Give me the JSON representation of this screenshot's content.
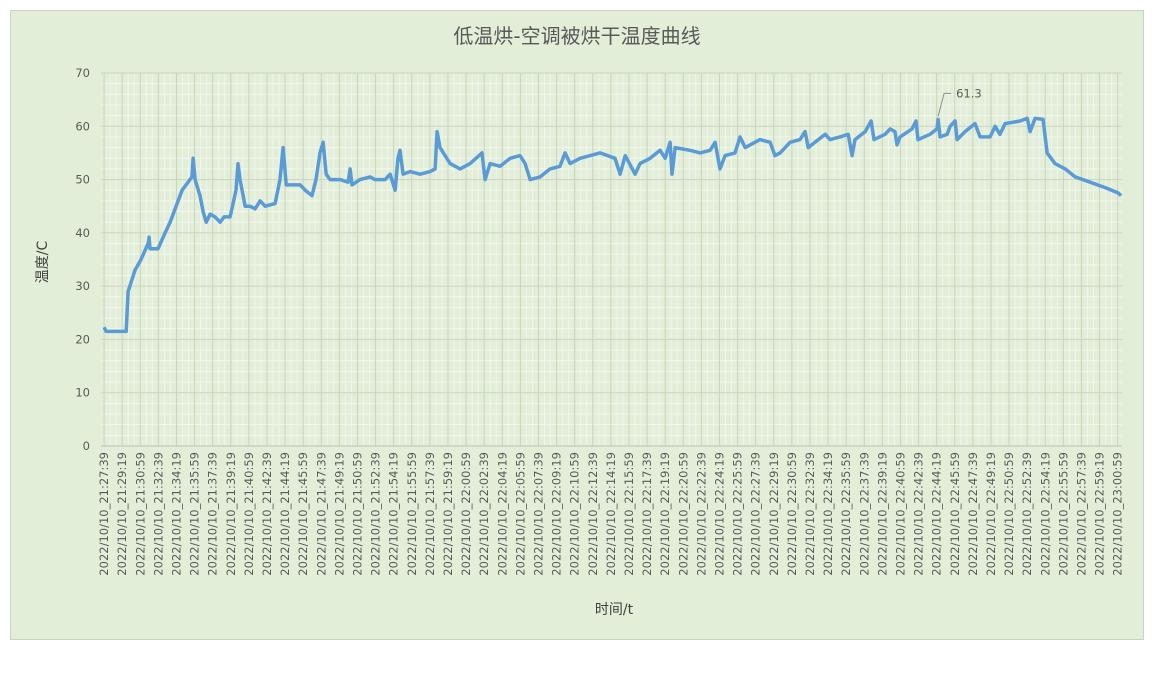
{
  "chart_data": {
    "type": "line",
    "title": "低温烘-空调被烘干温度曲线",
    "xlabel": "时间/t",
    "ylabel": "温度/C",
    "ylim": [
      0,
      70
    ],
    "yticks": [
      0,
      10,
      20,
      30,
      40,
      50,
      60,
      70
    ],
    "xlim": [
      "21:27:22",
      "23:01:23"
    ],
    "grid": true,
    "legend": "none",
    "line_color": "#5b9bd5",
    "background_color": "#e2eed8",
    "xtick_labels": [
      "2022/10/10_21:27:39",
      "2022/10/10_21:29:19",
      "2022/10/10_21:30:59",
      "2022/10/10_21:32:39",
      "2022/10/10_21:34:19",
      "2022/10/10_21:35:59",
      "2022/10/10_21:37:39",
      "2022/10/10_21:39:19",
      "2022/10/10_21:40:59",
      "2022/10/10_21:42:39",
      "2022/10/10_21:44:19",
      "2022/10/10_21:45:59",
      "2022/10/10_21:47:39",
      "2022/10/10_21:49:19",
      "2022/10/10_21:50:59",
      "2022/10/10_21:52:39",
      "2022/10/10_21:54:19",
      "2022/10/10_21:55:59",
      "2022/10/10_21:57:39",
      "2022/10/10_21:59:19",
      "2022/10/10_22:00:59",
      "2022/10/10_22:02:39",
      "2022/10/10_22:04:19",
      "2022/10/10_22:05:59",
      "2022/10/10_22:07:39",
      "2022/10/10_22:09:19",
      "2022/10/10_22:10:59",
      "2022/10/10_22:12:39",
      "2022/10/10_22:14:19",
      "2022/10/10_22:15:59",
      "2022/10/10_22:17:39",
      "2022/10/10_22:19:19",
      "2022/10/10_22:20:59",
      "2022/10/10_22:22:39",
      "2022/10/10_22:24:19",
      "2022/10/10_22:25:59",
      "2022/10/10_22:27:39",
      "2022/10/10_22:29:19",
      "2022/10/10_22:30:59",
      "2022/10/10_22:32:39",
      "2022/10/10_22:34:19",
      "2022/10/10_22:35:59",
      "2022/10/10_22:37:39",
      "2022/10/10_22:39:19",
      "2022/10/10_22:40:59",
      "2022/10/10_22:42:39",
      "2022/10/10_22:44:19",
      "2022/10/10_22:45:59",
      "2022/10/10_22:47:39",
      "2022/10/10_22:49:19",
      "2022/10/10_22:50:59",
      "2022/10/10_22:52:39",
      "2022/10/10_22:54:19",
      "2022/10/10_22:55:59",
      "2022/10/10_22:57:39",
      "2022/10/10_22:59:19",
      "2022/10/10_23:00:59"
    ],
    "annotation": {
      "x": "22:44:27",
      "y": 61.3,
      "label": "61.3"
    },
    "points": [
      [
        "21:27:39",
        22.3
      ],
      [
        "21:27:50",
        21.5
      ],
      [
        "21:29:41",
        21.5
      ],
      [
        "21:29:52",
        29
      ],
      [
        "21:30:30",
        33
      ],
      [
        "21:31:03",
        35
      ],
      [
        "21:31:42",
        38
      ],
      [
        "21:31:48",
        39.2
      ],
      [
        "21:31:53",
        37
      ],
      [
        "21:32:37",
        37
      ],
      [
        "21:33:16",
        40
      ],
      [
        "21:33:44",
        42
      ],
      [
        "21:34:17",
        45
      ],
      [
        "21:34:50",
        48
      ],
      [
        "21:35:23",
        49.5
      ],
      [
        "21:35:45",
        50.5
      ],
      [
        "21:35:51",
        54
      ],
      [
        "21:36:02",
        50
      ],
      [
        "21:36:29",
        47
      ],
      [
        "21:36:46",
        44
      ],
      [
        "21:37:03",
        42
      ],
      [
        "21:37:25",
        43.5
      ],
      [
        "21:37:52",
        43
      ],
      [
        "21:38:20",
        42
      ],
      [
        "21:38:42",
        43
      ],
      [
        "21:39:15",
        43
      ],
      [
        "21:39:48",
        48
      ],
      [
        "21:39:59",
        53
      ],
      [
        "21:40:10",
        50
      ],
      [
        "21:40:27",
        47
      ],
      [
        "21:40:38",
        45
      ],
      [
        "21:41:06",
        45
      ],
      [
        "21:41:33",
        44.5
      ],
      [
        "21:42:01",
        46
      ],
      [
        "21:42:29",
        45
      ],
      [
        "21:43:24",
        45.5
      ],
      [
        "21:43:51",
        50
      ],
      [
        "21:44:08",
        56
      ],
      [
        "21:44:25",
        49
      ],
      [
        "21:44:47",
        49
      ],
      [
        "21:45:42",
        49
      ],
      [
        "21:46:10",
        48
      ],
      [
        "21:46:48",
        47
      ],
      [
        "21:47:10",
        50
      ],
      [
        "21:47:32",
        55
      ],
      [
        "21:47:49",
        57
      ],
      [
        "21:48:06",
        51
      ],
      [
        "21:48:28",
        50
      ],
      [
        "21:49:23",
        50
      ],
      [
        "21:50:07",
        49.5
      ],
      [
        "21:50:18",
        52
      ],
      [
        "21:50:29",
        49
      ],
      [
        "21:51:13",
        50
      ],
      [
        "21:52:09",
        50.5
      ],
      [
        "21:52:36",
        50
      ],
      [
        "21:53:32",
        50
      ],
      [
        "21:53:59",
        51
      ],
      [
        "21:54:27",
        48
      ],
      [
        "21:54:43",
        54
      ],
      [
        "21:54:54",
        55.5
      ],
      [
        "21:55:11",
        51
      ],
      [
        "21:55:50",
        51.5
      ],
      [
        "21:56:45",
        51
      ],
      [
        "21:57:40",
        51.5
      ],
      [
        "21:58:08",
        52
      ],
      [
        "21:58:19",
        59
      ],
      [
        "21:58:35",
        56
      ],
      [
        "21:59:31",
        53
      ],
      [
        "22:00:26",
        52
      ],
      [
        "22:01:21",
        53
      ],
      [
        "22:02:27",
        55
      ],
      [
        "22:02:44",
        50
      ],
      [
        "22:03:12",
        53
      ],
      [
        "22:04:07",
        52.5
      ],
      [
        "22:05:02",
        54
      ],
      [
        "22:05:57",
        54.5
      ],
      [
        "22:06:25",
        53
      ],
      [
        "22:06:53",
        50
      ],
      [
        "22:07:48",
        50.5
      ],
      [
        "22:08:43",
        52
      ],
      [
        "22:09:38",
        52.5
      ],
      [
        "22:10:06",
        55
      ],
      [
        "22:10:34",
        53
      ],
      [
        "22:11:29",
        54
      ],
      [
        "22:13:19",
        55
      ],
      [
        "22:14:42",
        54
      ],
      [
        "22:15:10",
        51
      ],
      [
        "22:15:38",
        54.5
      ],
      [
        "22:16:33",
        51
      ],
      [
        "22:17:00",
        53
      ],
      [
        "22:17:56",
        54
      ],
      [
        "22:18:51",
        55.5
      ],
      [
        "22:19:19",
        54
      ],
      [
        "22:19:46",
        57
      ],
      [
        "22:19:57",
        51
      ],
      [
        "22:20:14",
        56
      ],
      [
        "22:21:37",
        55.5
      ],
      [
        "22:22:32",
        55
      ],
      [
        "22:23:27",
        55.5
      ],
      [
        "22:23:55",
        57
      ],
      [
        "22:24:22",
        52
      ],
      [
        "22:24:50",
        54.5
      ],
      [
        "22:25:45",
        55
      ],
      [
        "22:26:13",
        58
      ],
      [
        "22:26:41",
        56
      ],
      [
        "22:28:03",
        57.5
      ],
      [
        "22:28:59",
        57
      ],
      [
        "22:29:26",
        54.5
      ],
      [
        "22:29:54",
        55
      ],
      [
        "22:30:49",
        57
      ],
      [
        "22:31:44",
        57.5
      ],
      [
        "22:32:12",
        59
      ],
      [
        "22:32:29",
        56
      ],
      [
        "22:33:07",
        57
      ],
      [
        "22:34:03",
        58.5
      ],
      [
        "22:34:30",
        57.5
      ],
      [
        "22:35:25",
        58
      ],
      [
        "22:36:10",
        58.5
      ],
      [
        "22:36:32",
        54.5
      ],
      [
        "22:36:48",
        57.5
      ],
      [
        "22:37:44",
        59
      ],
      [
        "22:38:17",
        61
      ],
      [
        "22:38:33",
        57.5
      ],
      [
        "22:39:34",
        58.5
      ],
      [
        "22:40:02",
        59.5
      ],
      [
        "22:40:29",
        59
      ],
      [
        "22:40:40",
        56.5
      ],
      [
        "22:40:57",
        58
      ],
      [
        "22:42:03",
        59.5
      ],
      [
        "22:42:25",
        61
      ],
      [
        "22:42:36",
        57.5
      ],
      [
        "22:43:43",
        58.5
      ],
      [
        "22:44:21",
        59.5
      ],
      [
        "22:44:27",
        61.3
      ],
      [
        "22:44:38",
        58
      ],
      [
        "22:45:17",
        58.5
      ],
      [
        "22:45:33",
        60
      ],
      [
        "22:46:01",
        61
      ],
      [
        "22:46:12",
        57.5
      ],
      [
        "22:46:56",
        59
      ],
      [
        "22:47:51",
        60.5
      ],
      [
        "22:48:19",
        58
      ],
      [
        "22:49:14",
        58
      ],
      [
        "22:49:42",
        60
      ],
      [
        "22:50:09",
        58.5
      ],
      [
        "22:50:37",
        60.5
      ],
      [
        "22:52:00",
        61
      ],
      [
        "22:52:39",
        61.5
      ],
      [
        "22:52:55",
        59
      ],
      [
        "22:53:23",
        61.5
      ],
      [
        "22:54:07",
        61.3
      ],
      [
        "22:54:29",
        55
      ],
      [
        "22:55:13",
        53
      ],
      [
        "22:56:09",
        52
      ],
      [
        "22:57:04",
        50.5
      ],
      [
        "22:58:27",
        49.5
      ],
      [
        "22:59:50",
        48.5
      ],
      [
        "23:01:01",
        47.5
      ],
      [
        "23:01:18",
        47
      ]
    ]
  }
}
